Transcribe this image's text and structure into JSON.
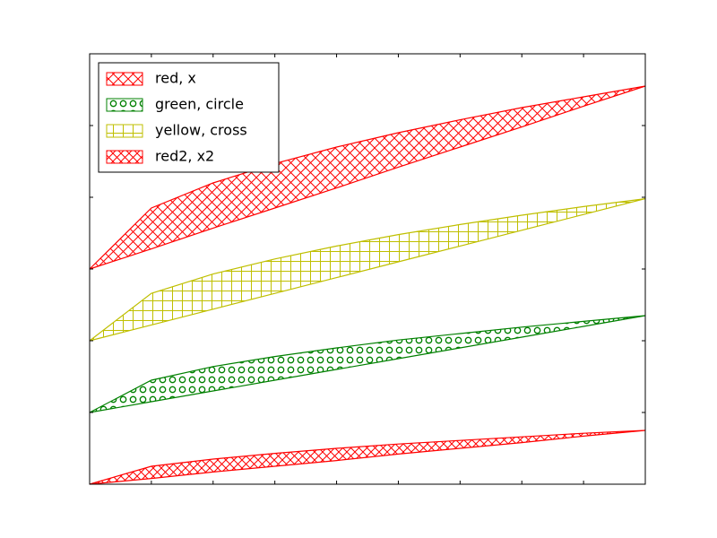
{
  "chart_data": {
    "type": "area",
    "x": [
      0,
      1,
      2,
      3,
      4,
      5,
      6,
      7,
      8,
      9
    ],
    "xlim": [
      0,
      9
    ],
    "ylim": [
      0,
      6
    ],
    "xticks": [
      0,
      1,
      2,
      3,
      4,
      5,
      6,
      7,
      8,
      9
    ],
    "yticks": [
      0,
      1,
      2,
      3,
      4,
      5,
      6
    ],
    "legend": "upper left",
    "series": [
      {
        "name": "red, x",
        "color": "#ff0000",
        "hatch": "x",
        "upper": [
          3,
          3.85,
          4.2,
          4.47,
          4.7,
          4.9,
          5.08,
          5.25,
          5.4,
          5.55
        ],
        "lower": [
          3,
          3.28,
          3.57,
          3.85,
          4.13,
          4.42,
          4.7,
          4.98,
          5.27,
          5.55
        ]
      },
      {
        "name": "green, circle",
        "color": "#008000",
        "hatch": "o",
        "upper": [
          1,
          1.45,
          1.64,
          1.78,
          1.9,
          2.01,
          2.1,
          2.19,
          2.27,
          2.35
        ],
        "lower": [
          1,
          1.15,
          1.3,
          1.45,
          1.6,
          1.75,
          1.9,
          2.05,
          2.2,
          2.35
        ]
      },
      {
        "name": "yellow, cross",
        "color": "#bfbf00",
        "hatch": "+",
        "upper": [
          2,
          2.66,
          2.93,
          3.14,
          3.32,
          3.48,
          3.62,
          3.75,
          3.87,
          3.98
        ],
        "lower": [
          2,
          2.22,
          2.44,
          2.66,
          2.88,
          3.1,
          3.32,
          3.54,
          3.76,
          3.98
        ]
      },
      {
        "name": "red2, x2",
        "color": "#ff0000",
        "hatch": "xx",
        "upper": [
          0,
          0.25,
          0.35,
          0.43,
          0.5,
          0.56,
          0.61,
          0.66,
          0.71,
          0.75
        ],
        "lower": [
          0,
          0.08,
          0.17,
          0.25,
          0.33,
          0.42,
          0.5,
          0.58,
          0.67,
          0.75
        ]
      }
    ]
  }
}
